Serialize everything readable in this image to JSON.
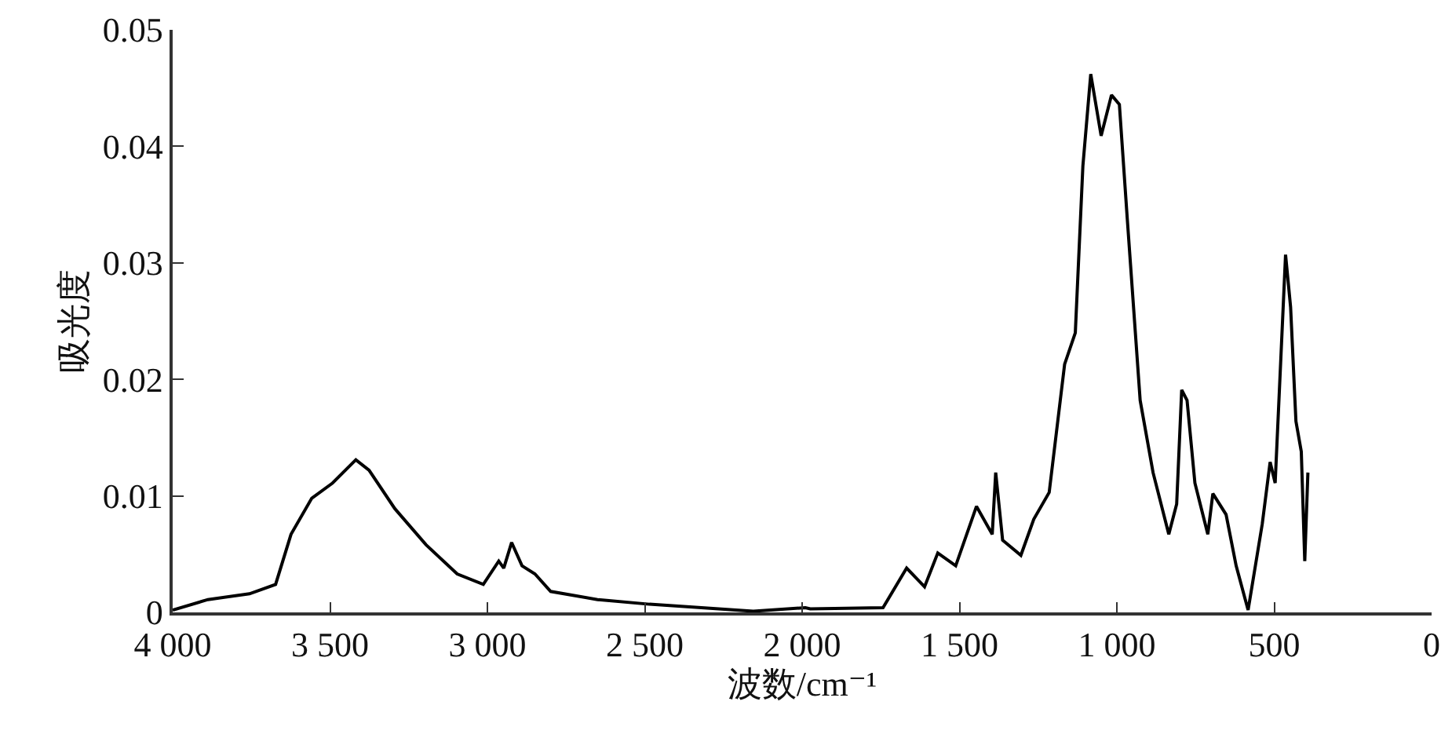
{
  "chart_data": {
    "type": "line",
    "xlabel": "波数/cm⁻¹",
    "ylabel": "吸光度",
    "xlim": [
      4000,
      0
    ],
    "ylim": [
      0,
      0.05
    ],
    "xticks": [
      {
        "value": 4000,
        "label": "4 000"
      },
      {
        "value": 3500,
        "label": "3 500"
      },
      {
        "value": 3000,
        "label": "3 000"
      },
      {
        "value": 2500,
        "label": "2 500"
      },
      {
        "value": 2000,
        "label": "2 000"
      },
      {
        "value": 1500,
        "label": "1 500"
      },
      {
        "value": 1000,
        "label": "1 000"
      },
      500,
      0
    ],
    "yticks": [
      0,
      0.01,
      0.02,
      0.03,
      0.04,
      0.05
    ],
    "grid": false,
    "marker": "none",
    "line_style": "solid",
    "series": [
      {
        "color": "#000000",
        "x": [
          4000,
          3888,
          3756,
          3673,
          3624,
          3558,
          3492,
          3418,
          3376,
          3294,
          3195,
          3096,
          3013,
          2964,
          2948,
          2923,
          2890,
          2849,
          2799,
          2650,
          2485,
          2320,
          2155,
          1990,
          1974,
          1743,
          1668,
          1611,
          1569,
          1512,
          1446,
          1396,
          1385,
          1363,
          1305,
          1264,
          1215,
          1166,
          1132,
          1108,
          1083,
          1050,
          1017,
          992,
          967,
          926,
          885,
          835,
          810,
          794,
          777,
          752,
          711,
          695,
          653,
          621,
          583,
          538,
          513,
          497,
          464,
          448,
          431,
          414,
          403,
          393
        ],
        "values": [
          0.0002,
          0.0011,
          0.0016,
          0.0024,
          0.0067,
          0.0098,
          0.0111,
          0.0131,
          0.0122,
          0.0089,
          0.0058,
          0.0033,
          0.0024,
          0.0044,
          0.0038,
          0.006,
          0.004,
          0.0033,
          0.0018,
          0.0011,
          0.0007,
          0.0004,
          0.0001,
          0.0004,
          0.0003,
          0.0004,
          0.0038,
          0.0022,
          0.0051,
          0.004,
          0.0091,
          0.0067,
          0.012,
          0.0062,
          0.0049,
          0.008,
          0.0103,
          0.0213,
          0.024,
          0.0383,
          0.0462,
          0.0409,
          0.0444,
          0.0436,
          0.0338,
          0.0182,
          0.012,
          0.0067,
          0.0093,
          0.0191,
          0.0182,
          0.0111,
          0.0067,
          0.0102,
          0.0084,
          0.004,
          0.0002,
          0.0076,
          0.0129,
          0.0111,
          0.0307,
          0.0262,
          0.0164,
          0.0138,
          0.0044,
          0.012
        ]
      }
    ]
  }
}
